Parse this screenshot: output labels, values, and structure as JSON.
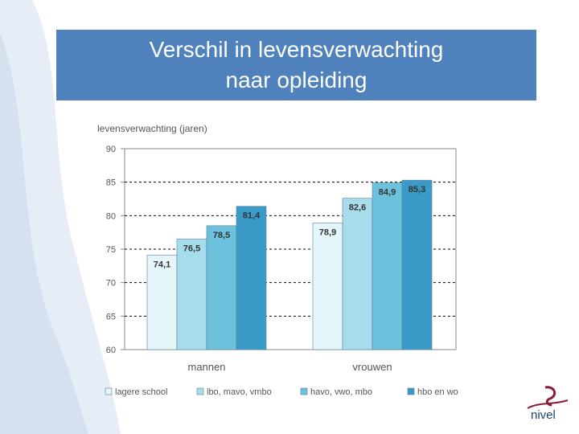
{
  "slide": {
    "title_line1": "Verschil in levensverwachting",
    "title_line2": "naar opleiding",
    "logo_text": "nivel"
  },
  "colors": {
    "title_bg": "#4f81bd",
    "series": [
      "#e4f6fa",
      "#a7dced",
      "#6cc1dc",
      "#3a9ac8"
    ],
    "grid": "#000000",
    "text": "#555555"
  },
  "chart_data": {
    "type": "bar",
    "ylabel": "levensverwachting (jaren)",
    "xlabel": "",
    "ylim": [
      60,
      90
    ],
    "yticks": [
      60,
      65,
      70,
      75,
      80,
      85,
      90
    ],
    "categories": [
      "mannen",
      "vrouwen"
    ],
    "series": [
      {
        "name": "lagere school",
        "values": [
          74.1,
          78.9
        ],
        "labels": [
          "74,1",
          "78,9"
        ]
      },
      {
        "name": "lbo, mavo, vmbo",
        "values": [
          76.5,
          82.6
        ],
        "labels": [
          "76,5",
          "82,6"
        ]
      },
      {
        "name": "havo, vwo, mbo",
        "values": [
          78.5,
          84.9
        ],
        "labels": [
          "78,5",
          "84,9"
        ]
      },
      {
        "name": "hbo en wo",
        "values": [
          81.4,
          85.3
        ],
        "labels": [
          "81,4",
          "85,3"
        ]
      }
    ],
    "grid": true,
    "legend": "bottom"
  }
}
